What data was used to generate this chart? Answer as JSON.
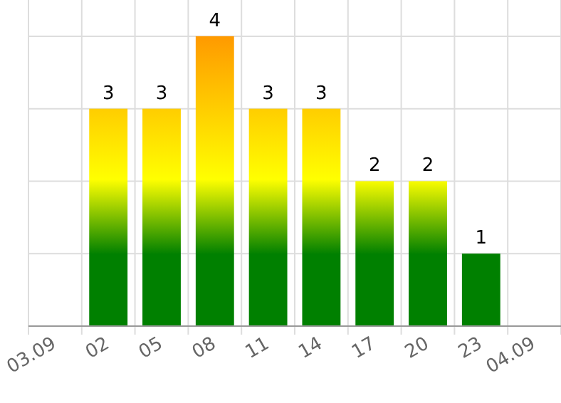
{
  "chart_data": {
    "type": "bar",
    "categories": [
      "03.09",
      "02",
      "05",
      "08",
      "11",
      "14",
      "17",
      "20",
      "23",
      "04.09"
    ],
    "series": [
      {
        "color": "#008000",
        "values": [
          null,
          3,
          3,
          4,
          3,
          3,
          2,
          2,
          1,
          null
        ]
      }
    ],
    "ylim": [
      0,
      4.5
    ],
    "yticks": [
      {
        "value": 0,
        "label": null
      },
      {
        "value": 1,
        "label": null
      },
      {
        "value": 2,
        "label": null
      },
      {
        "value": 3,
        "label": null
      },
      {
        "value": 4,
        "label": null
      }
    ],
    "tick_labels": "x",
    "grid": true,
    "data_labels": true
  }
}
